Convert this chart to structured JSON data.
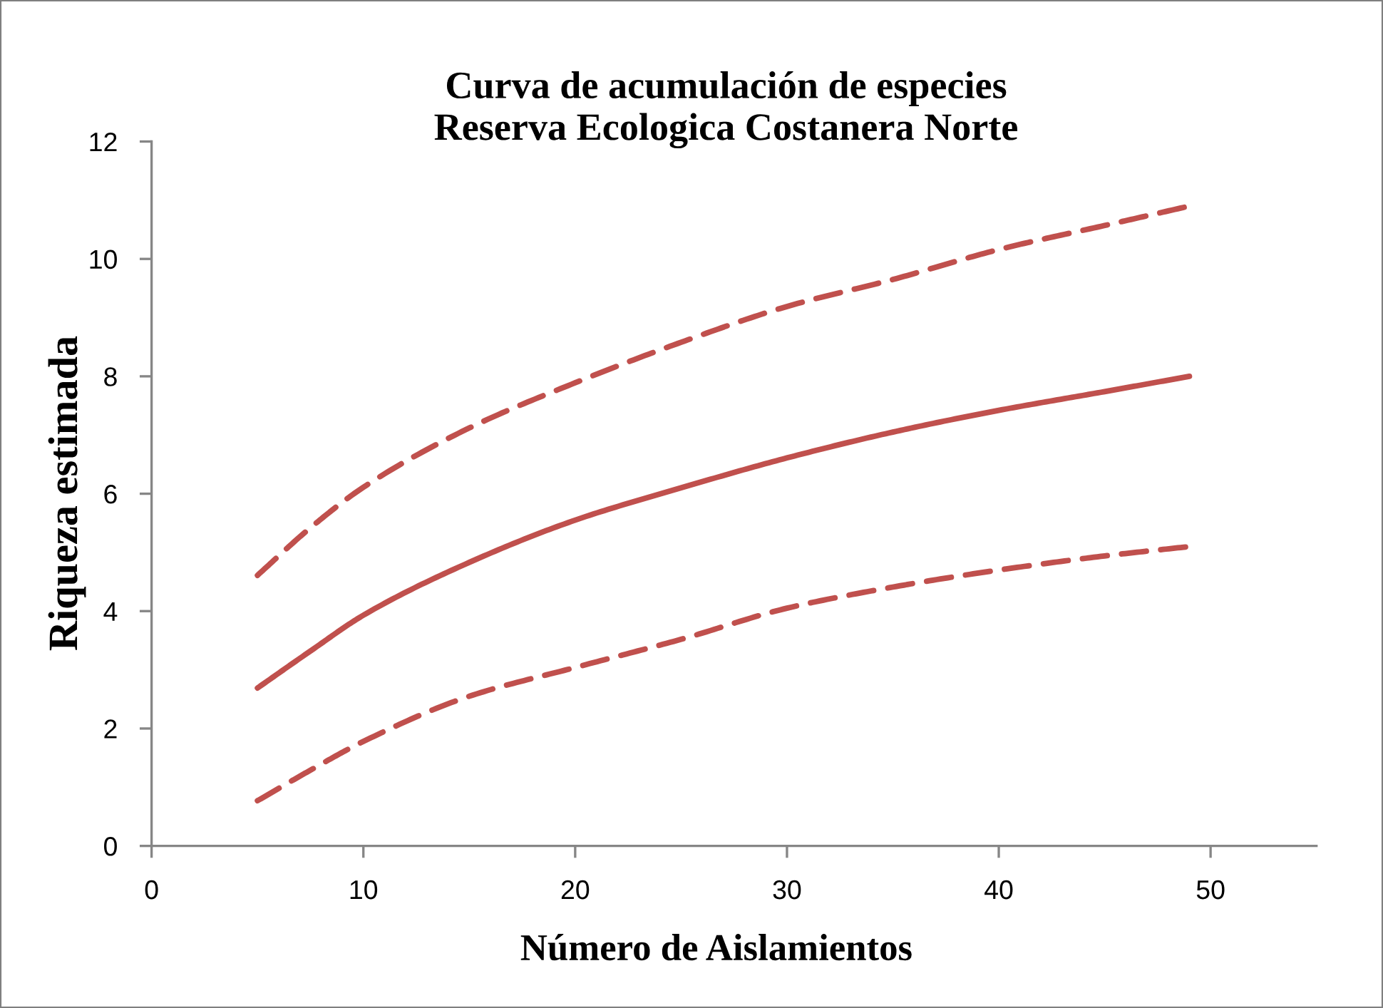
{
  "chart_data": {
    "type": "line",
    "title": "Curva de acumulación de especies\nReserva Ecologica Costanera Norte",
    "xlabel": "Número de Aislamientos",
    "ylabel": "Riqueza estimada",
    "xlim": [
      0,
      55
    ],
    "xticks": [
      0,
      10,
      20,
      30,
      40,
      50
    ],
    "ylim": [
      0,
      12
    ],
    "yticks": [
      0,
      2,
      4,
      6,
      8,
      10,
      12
    ],
    "grid": false,
    "series": [
      {
        "color": "#c0504d",
        "line_style": "solid",
        "x": [
          5,
          7.5,
          10,
          15,
          20,
          25,
          30,
          35,
          40,
          45,
          49
        ],
        "values": [
          2.69,
          3.32,
          3.93,
          4.83,
          5.55,
          6.1,
          6.61,
          7.05,
          7.42,
          7.74,
          8.0
        ]
      },
      {
        "color": "#c0504d",
        "line_style": "dashed",
        "x": [
          5,
          7.5,
          10,
          15,
          20,
          25,
          30,
          35,
          40,
          45,
          49
        ],
        "values": [
          4.61,
          5.42,
          6.11,
          7.12,
          7.89,
          8.58,
          9.19,
          9.65,
          10.16,
          10.57,
          10.9
        ]
      },
      {
        "color": "#c0504d",
        "line_style": "dashed",
        "x": [
          5,
          7.5,
          10,
          15,
          20,
          25,
          30,
          35,
          40,
          45,
          49
        ],
        "values": [
          0.77,
          1.29,
          1.78,
          2.55,
          3.04,
          3.52,
          4.05,
          4.41,
          4.7,
          4.94,
          5.1
        ]
      }
    ]
  }
}
